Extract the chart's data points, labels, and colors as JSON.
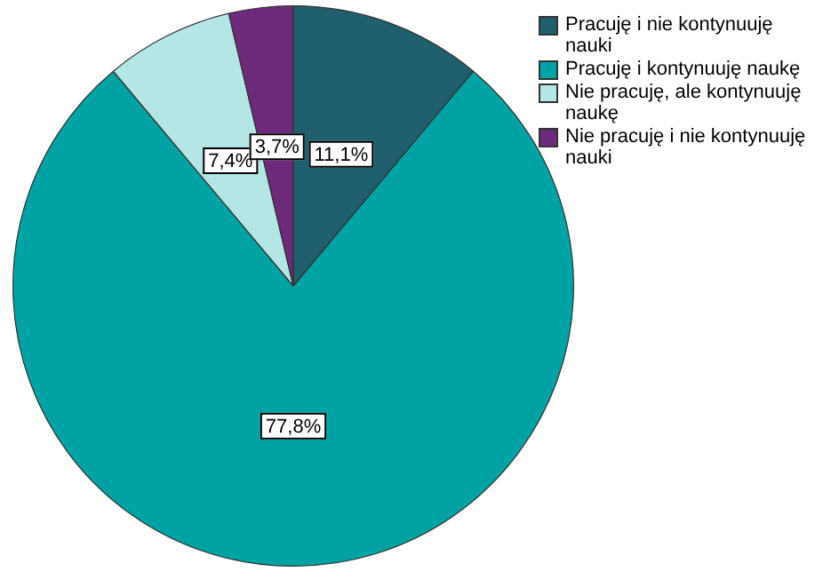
{
  "chart_data": {
    "type": "pie",
    "categories": [
      "Pracuję i nie kontynuuję nauki",
      "Pracuję i kontynuuję naukę",
      "Nie pracuję, ale kontynuuję naukę",
      "Nie pracuję i nie kontynuuję nauki"
    ],
    "values": [
      11.1,
      77.8,
      7.4,
      3.7
    ],
    "colors": [
      "#1f5f6e",
      "#00a3a3",
      "#b5e6e6",
      "#6e2a7a"
    ],
    "value_labels": [
      "11,1%",
      "77,8%",
      "7,4%",
      "3,7%"
    ],
    "legend": "top right"
  }
}
